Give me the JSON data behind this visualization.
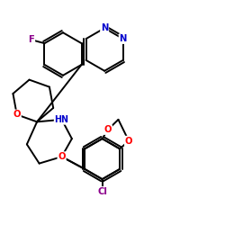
{
  "background_color": "#ffffff",
  "bond_color": "#000000",
  "atom_colors": {
    "F": "#8b008b",
    "N": "#0000cd",
    "O": "#ff0000",
    "Cl": "#8b008b",
    "HN": "#0000cd",
    "C": "#000000"
  },
  "figsize": [
    2.5,
    2.5
  ],
  "dpi": 100,
  "lw": 1.4,
  "label_fontsize": 7.2
}
